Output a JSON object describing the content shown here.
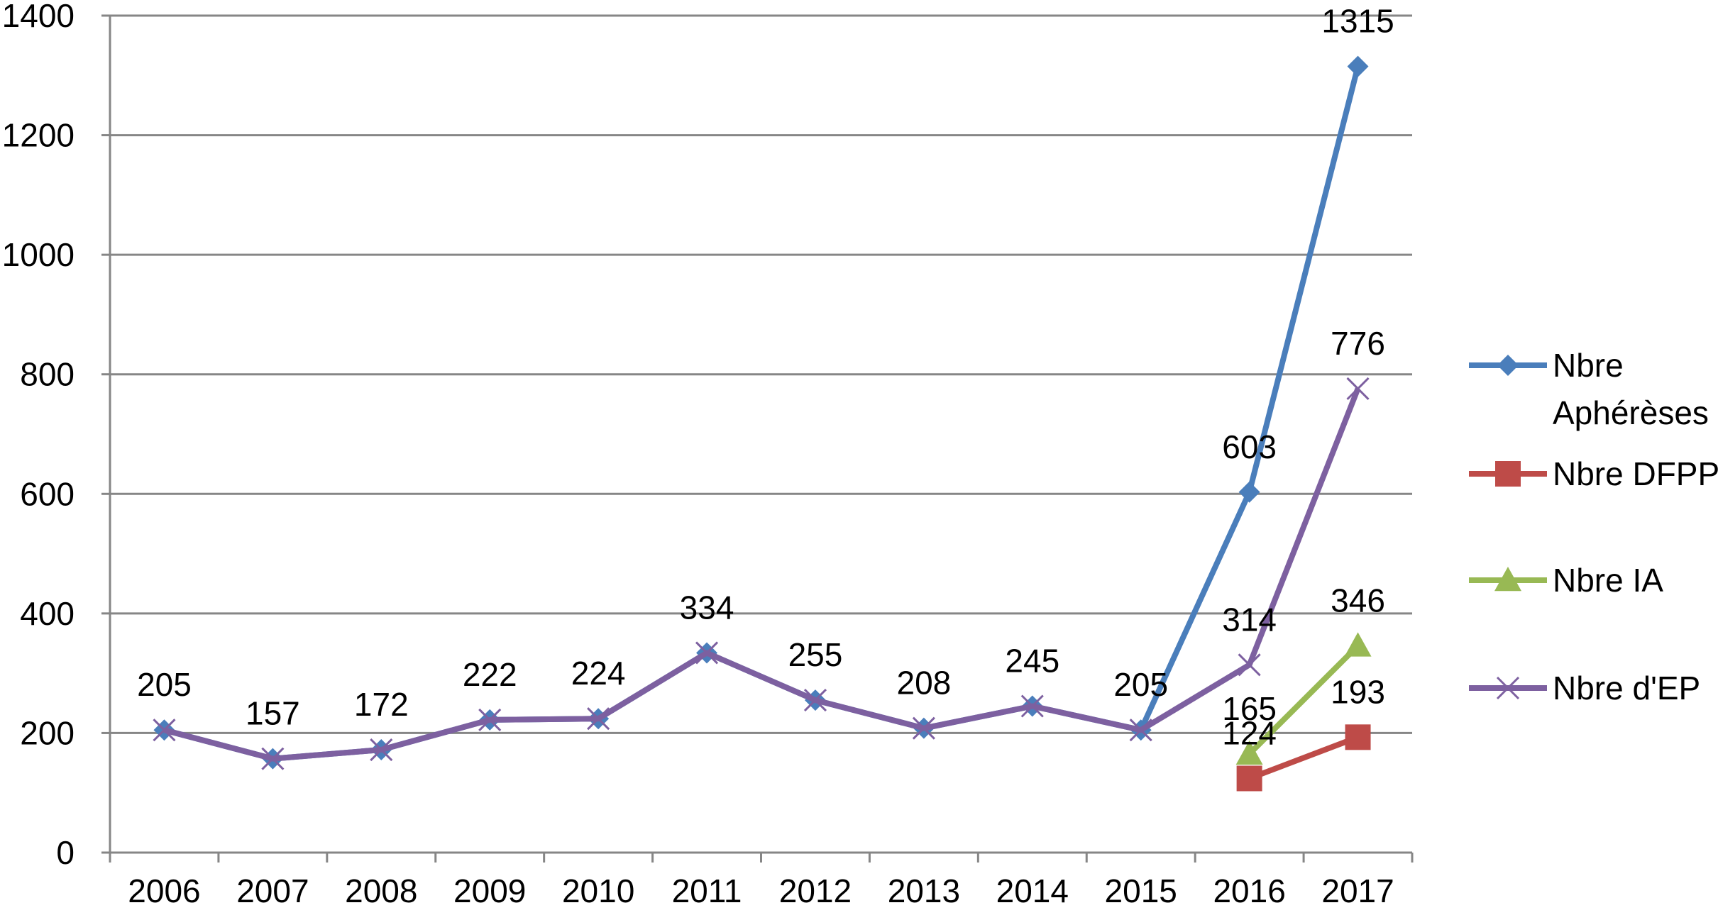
{
  "chart_data": {
    "type": "line",
    "categories": [
      "2006",
      "2007",
      "2008",
      "2009",
      "2010",
      "2011",
      "2012",
      "2013",
      "2014",
      "2015",
      "2016",
      "2017"
    ],
    "ylim": [
      0,
      1400
    ],
    "yticks": [
      0,
      200,
      400,
      600,
      800,
      1000,
      1200,
      1400
    ],
    "grid": true,
    "legend_position": "right",
    "series": [
      {
        "name": "Nbre Aphérèses",
        "name_lines": [
          "Nbre",
          "Aphérèses"
        ],
        "color": "#4A7EBB",
        "marker": "diamond",
        "values": [
          205,
          157,
          172,
          222,
          224,
          334,
          255,
          208,
          245,
          205,
          603,
          1315
        ],
        "labels": [
          "205",
          "157",
          "172",
          "222",
          "224",
          "334",
          "255",
          "208",
          "245",
          "205",
          "603",
          "1315"
        ]
      },
      {
        "name": "Nbre DFPP",
        "name_lines": [
          "Nbre DFPP"
        ],
        "color": "#BE4B48",
        "marker": "square",
        "values": [
          null,
          null,
          null,
          null,
          null,
          null,
          null,
          null,
          null,
          null,
          124,
          193
        ],
        "labels": [
          null,
          null,
          null,
          null,
          null,
          null,
          null,
          null,
          null,
          null,
          "124",
          "193"
        ]
      },
      {
        "name": "Nbre IA",
        "name_lines": [
          "Nbre IA"
        ],
        "color": "#98B954",
        "marker": "triangle",
        "values": [
          null,
          null,
          null,
          null,
          null,
          null,
          null,
          null,
          null,
          null,
          165,
          346
        ],
        "labels": [
          null,
          null,
          null,
          null,
          null,
          null,
          null,
          null,
          null,
          null,
          "165",
          "346"
        ]
      },
      {
        "name": "Nbre d'EP",
        "name_lines": [
          "Nbre d'EP"
        ],
        "color": "#7D60A0",
        "marker": "x",
        "values": [
          205,
          157,
          172,
          222,
          224,
          334,
          255,
          208,
          245,
          205,
          314,
          776
        ],
        "labels": [
          null,
          null,
          null,
          null,
          null,
          null,
          null,
          null,
          null,
          null,
          "314",
          "776"
        ]
      }
    ]
  }
}
